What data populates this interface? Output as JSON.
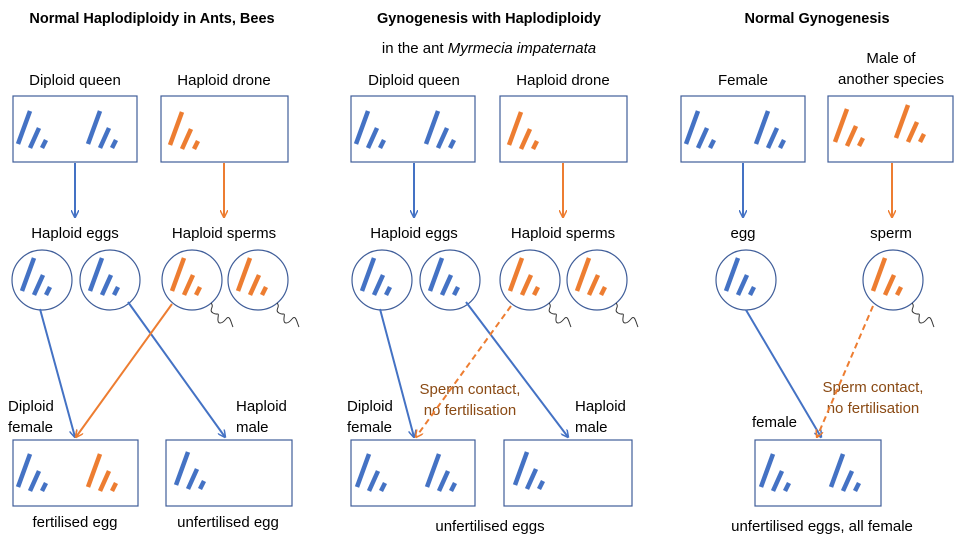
{
  "colors": {
    "maternal": "#4472c4",
    "paternal": "#ed7d31",
    "box_border": "#3f5d99",
    "note_text": "#8a4a14"
  },
  "panel1": {
    "title": "Normal Haplodiploidy in Ants, Bees",
    "parent1": "Diploid queen",
    "parent2": "Haploid drone",
    "gamete1": "Haploid eggs",
    "gamete2": "Haploid sperms",
    "offspring1_a": "Diploid",
    "offspring1_b": "female",
    "offspring2_a": "Haploid",
    "offspring2_b": "male",
    "result1": "fertilised egg",
    "result2": "unfertilised egg"
  },
  "panel2": {
    "title": "Gynogenesis with Haplodiploidy",
    "subtitle_prefix": "in the ant ",
    "subtitle_species": "Myrmecia impaternata",
    "parent1": "Diploid queen",
    "parent2": "Haploid drone",
    "gamete1": "Haploid eggs",
    "gamete2": "Haploid sperms",
    "note_a": "Sperm contact,",
    "note_b": "no fertilisation",
    "offspring1_a": "Diploid",
    "offspring1_b": "female",
    "offspring2_a": "Haploid",
    "offspring2_b": "male",
    "result": "unfertilised eggs"
  },
  "panel3": {
    "title": "Normal Gynogenesis",
    "parent1": "Female",
    "parent2_a": "Male of",
    "parent2_b": "another species",
    "gamete1": "egg",
    "gamete2": "sperm",
    "note_a": "Sperm contact,",
    "note_b": "no fertilisation",
    "offspring": "female",
    "result": "unfertilised eggs, all female"
  }
}
